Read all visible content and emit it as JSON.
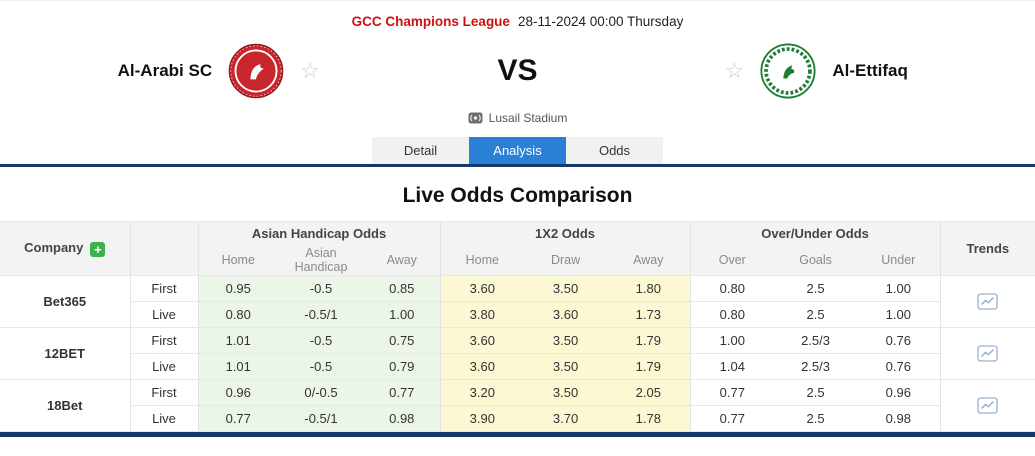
{
  "header": {
    "league": "GCC Champions League",
    "datetime": "28-11-2024 00:00 Thursday",
    "home_team": "Al-Arabi SC",
    "away_team": "Al-Ettifaq",
    "vs": "VS",
    "venue": "Lusail Stadium"
  },
  "icons": {
    "home_logo": "al-arabi-crest (red circle badge)",
    "away_logo": "al-ettifaq-crest (green wreath badge)",
    "favorite": "star-outline",
    "venue": "broadcast-icon",
    "add": "plus-icon",
    "trends": "line-chart-icon"
  },
  "colors": {
    "accent_blue": "#2a80d5",
    "navy_line": "#16386b",
    "league_red": "#cc1111",
    "asian_handicap_bg": "#ecf6e8",
    "x2_bg": "#fbf8d3",
    "plus_green": "#3bb34a"
  },
  "tabs": [
    {
      "label": "Detail",
      "active": false
    },
    {
      "label": "Analysis",
      "active": true
    },
    {
      "label": "Odds",
      "active": false
    }
  ],
  "section_title": "Live Odds Comparison",
  "odds_table": {
    "company_header": "Company",
    "add_button": "+",
    "group_headers": [
      "Asian Handicap Odds",
      "1X2 Odds",
      "Over/Under Odds"
    ],
    "sub_headers": [
      "Home",
      "Asian Handicap",
      "Away",
      "Home",
      "Draw",
      "Away",
      "Over",
      "Goals",
      "Under"
    ],
    "trends_header": "Trends",
    "companies": [
      {
        "name": "Bet365",
        "rows": [
          {
            "label": "First",
            "values": [
              "0.95",
              "-0.5",
              "0.85",
              "3.60",
              "3.50",
              "1.80",
              "0.80",
              "2.5",
              "1.00"
            ]
          },
          {
            "label": "Live",
            "values": [
              "0.80",
              "-0.5/1",
              "1.00",
              "3.80",
              "3.60",
              "1.73",
              "0.80",
              "2.5",
              "1.00"
            ]
          }
        ]
      },
      {
        "name": "12BET",
        "rows": [
          {
            "label": "First",
            "values": [
              "1.01",
              "-0.5",
              "0.75",
              "3.60",
              "3.50",
              "1.79",
              "1.00",
              "2.5/3",
              "0.76"
            ]
          },
          {
            "label": "Live",
            "values": [
              "1.01",
              "-0.5",
              "0.79",
              "3.60",
              "3.50",
              "1.79",
              "1.04",
              "2.5/3",
              "0.76"
            ]
          }
        ]
      },
      {
        "name": "18Bet",
        "rows": [
          {
            "label": "First",
            "values": [
              "0.96",
              "0/-0.5",
              "0.77",
              "3.20",
              "3.50",
              "2.05",
              "0.77",
              "2.5",
              "0.96"
            ]
          },
          {
            "label": "Live",
            "values": [
              "0.77",
              "-0.5/1",
              "0.98",
              "3.90",
              "3.70",
              "1.78",
              "0.77",
              "2.5",
              "0.98"
            ]
          }
        ]
      }
    ]
  }
}
